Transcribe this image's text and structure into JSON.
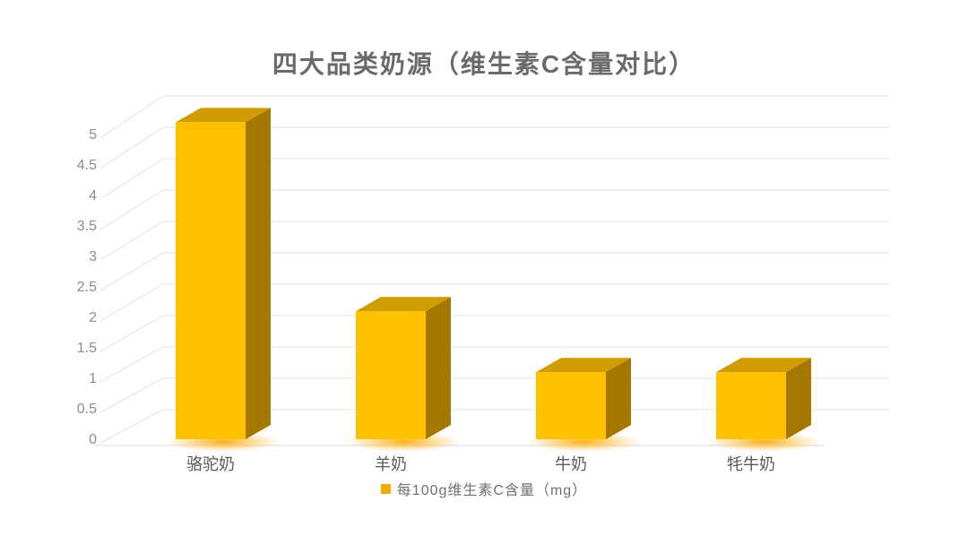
{
  "chart_data": {
    "type": "bar",
    "style": "3d-column",
    "title": "四大品类奶源（维生素C含量对比）",
    "categories": [
      "骆驼奶",
      "羊奶",
      "牛奶",
      "牦牛奶"
    ],
    "series": [
      {
        "name": "每100g维生素C含量（mg）",
        "values": [
          5.2,
          2.1,
          1.1,
          1.1
        ]
      }
    ],
    "xlabel": "",
    "ylabel": "",
    "ylim": [
      0,
      5
    ],
    "ytick_step": 0.5,
    "yticks": [
      "0",
      "0.5",
      "1",
      "1.5",
      "2",
      "2.5",
      "3",
      "3.5",
      "4",
      "4.5",
      "5"
    ],
    "grid": true,
    "legend": {
      "position": "bottom",
      "label": "每100g维生素C含量（mg）"
    },
    "colors": {
      "bar_front": "#FFC000",
      "bar_top": "#D19C00",
      "bar_side": "#A37700",
      "glow": "#FFA800",
      "gridline": "#E0E0E0",
      "axis_text": "#8C8C8C",
      "title_text": "#6A6A6A",
      "category_text": "#595959",
      "legend_text": "#707070",
      "legend_swatch": "#F2A900",
      "background": "#FFFFFF"
    }
  }
}
